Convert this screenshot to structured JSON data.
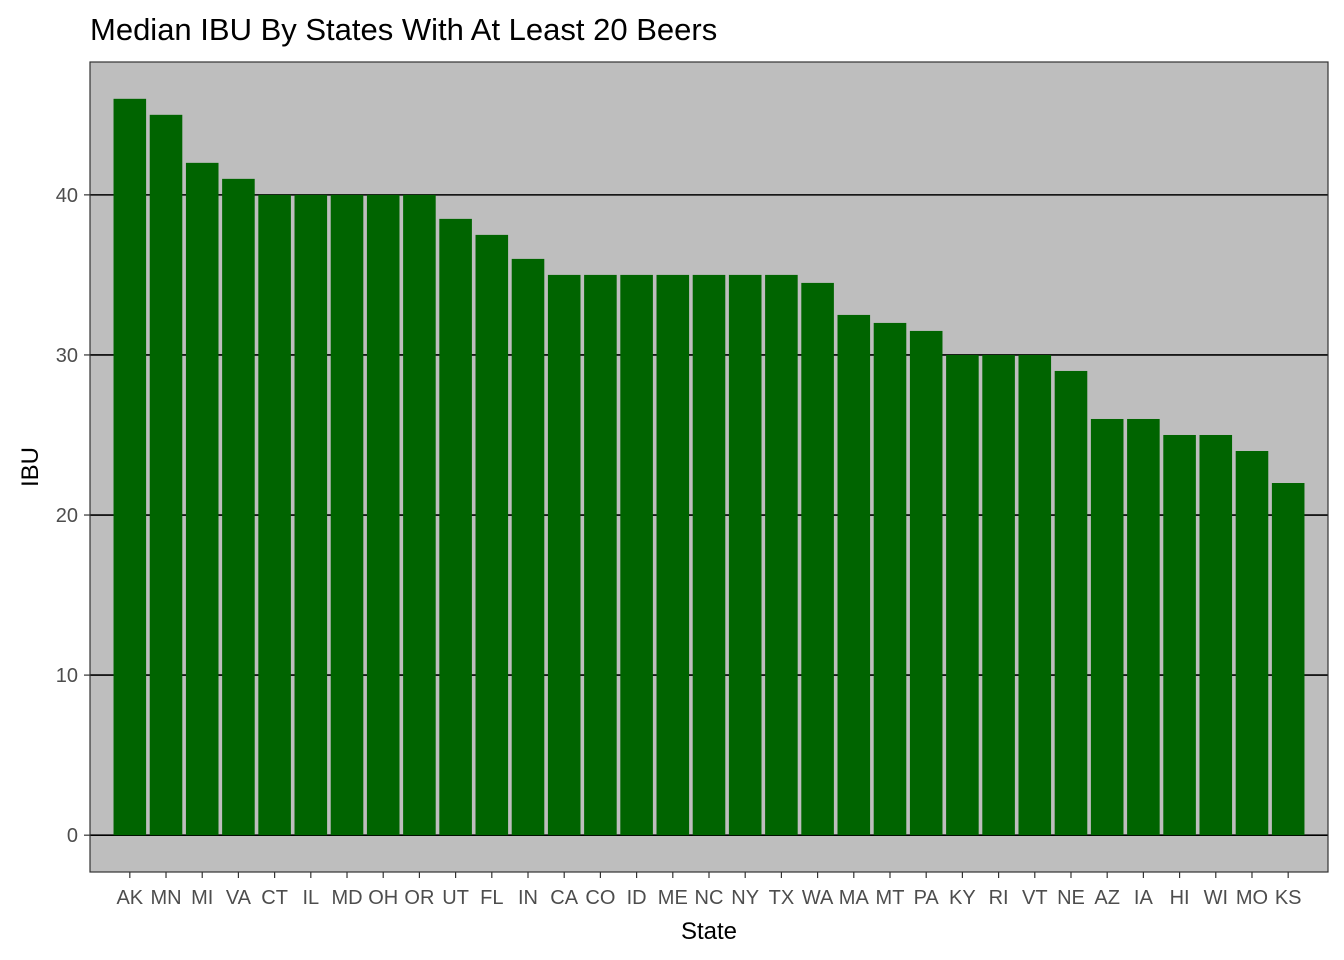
{
  "chart_data": {
    "type": "bar",
    "title": "Median IBU By States With At Least 20 Beers",
    "xlabel": "State",
    "ylabel": "IBU",
    "ylim": [
      -2.3,
      48.3
    ],
    "yticks": [
      0,
      10,
      20,
      30,
      40
    ],
    "grid": "horizontal major gridlines",
    "legend": "none",
    "categories": [
      "AK",
      "MN",
      "MI",
      "VA",
      "CT",
      "IL",
      "MD",
      "OH",
      "OR",
      "UT",
      "FL",
      "IN",
      "CA",
      "CO",
      "ID",
      "ME",
      "NC",
      "NY",
      "TX",
      "WA",
      "MA",
      "MT",
      "PA",
      "KY",
      "RI",
      "VT",
      "NE",
      "AZ",
      "IA",
      "HI",
      "WI",
      "MO",
      "KS"
    ],
    "values": [
      46,
      45,
      42,
      41,
      40,
      40,
      40,
      40,
      40,
      38.5,
      37.5,
      36,
      35,
      35,
      35,
      35,
      35,
      35,
      35,
      34.5,
      32.5,
      32,
      31.5,
      30,
      30,
      30,
      29,
      26,
      26,
      25,
      25,
      24,
      22
    ]
  },
  "colors": {
    "bar": "#006400",
    "panel_background": "#bebebe",
    "gridline": "#000000",
    "tick_label": "#4d4d4d"
  }
}
